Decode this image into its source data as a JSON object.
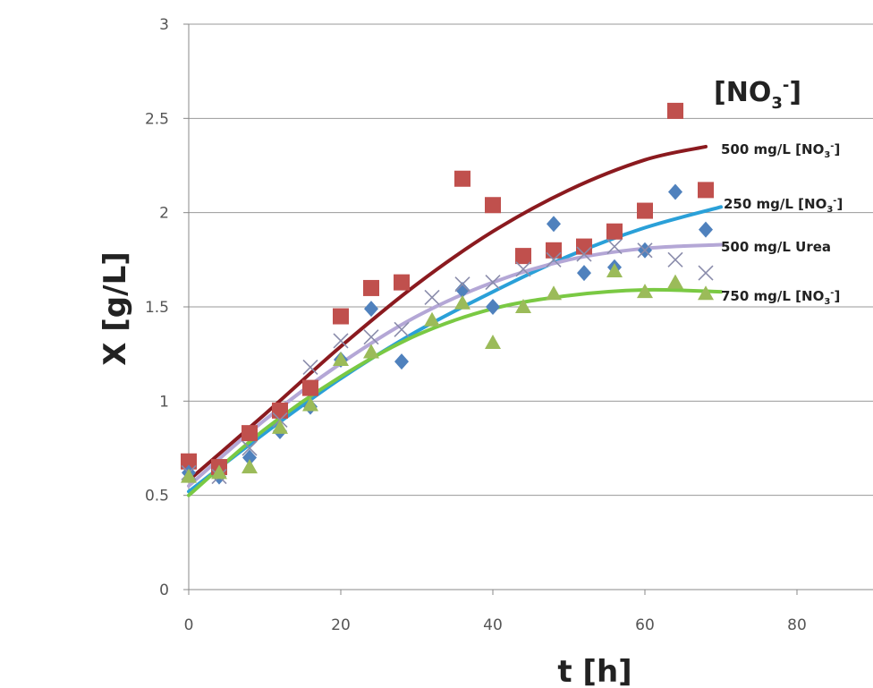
{
  "chart_data": {
    "type": "scatter",
    "title": "",
    "xlabel": "t [h]",
    "ylabel": "X [g/L]",
    "xlim": [
      0,
      90
    ],
    "ylim": [
      0,
      3
    ],
    "x_ticks": [
      "0",
      "20",
      "40",
      "60",
      "80"
    ],
    "y_ticks": [
      "0",
      "0.5",
      "1",
      "1.5",
      "2",
      "2.5",
      "3"
    ],
    "grid": "horizontal",
    "legend_placement": "right",
    "legend_title": {
      "base": "[NO",
      "sub": "3",
      "sup": "-",
      "close": "]"
    },
    "series": [
      {
        "name": "500 mg/L [NO3-]",
        "label": {
          "text": "500 mg/L [NO",
          "sub": "3",
          "sup": "-",
          "close": "]"
        },
        "marker": "square",
        "color": "#c0504d",
        "fit_color": "#8b1a1f",
        "x": [
          0,
          4,
          8,
          12,
          16,
          20,
          24,
          28,
          36,
          40,
          44,
          48,
          52,
          56,
          60,
          64,
          68
        ],
        "y": [
          0.68,
          0.65,
          0.83,
          0.95,
          1.07,
          1.45,
          1.6,
          1.63,
          2.18,
          2.04,
          1.77,
          1.8,
          1.82,
          1.9,
          2.01,
          2.54,
          2.12
        ],
        "fit": {
          "x": [
            0,
            10,
            20,
            30,
            40,
            50,
            60,
            68
          ],
          "y": [
            0.58,
            0.93,
            1.29,
            1.62,
            1.9,
            2.12,
            2.28,
            2.35
          ]
        }
      },
      {
        "name": "250 mg/L [NO3-]",
        "label": {
          "text": "250 mg/L [NO",
          "sub": "3",
          "sup": "-",
          "close": "]"
        },
        "marker": "diamond",
        "color": "#4f81bd",
        "fit_color": "#2aa0d8",
        "x": [
          0,
          4,
          8,
          12,
          16,
          20,
          24,
          28,
          36,
          40,
          48,
          52,
          56,
          60,
          64,
          68
        ],
        "y": [
          0.62,
          0.6,
          0.7,
          0.84,
          0.97,
          1.22,
          1.49,
          1.21,
          1.59,
          1.5,
          1.94,
          1.68,
          1.71,
          1.8,
          2.11,
          1.91
        ],
        "fit": {
          "x": [
            0,
            10,
            20,
            30,
            40,
            50,
            60,
            70
          ],
          "y": [
            0.52,
            0.83,
            1.12,
            1.37,
            1.58,
            1.77,
            1.92,
            2.03
          ]
        }
      },
      {
        "name": "500 mg/L  Urea",
        "label": {
          "text": "500 mg/L  Urea"
        },
        "marker": "x",
        "color": "#8a8cab",
        "fit_color": "#b4a7d6",
        "x": [
          0,
          4,
          8,
          12,
          16,
          20,
          24,
          28,
          32,
          36,
          40,
          44,
          48,
          52,
          56,
          60,
          64,
          68
        ],
        "y": [
          0.62,
          0.6,
          0.75,
          0.9,
          1.18,
          1.32,
          1.34,
          1.38,
          1.55,
          1.62,
          1.63,
          1.7,
          1.75,
          1.78,
          1.82,
          1.8,
          1.75,
          1.68
        ],
        "fit": {
          "x": [
            0,
            10,
            20,
            30,
            40,
            50,
            60,
            70
          ],
          "y": [
            0.55,
            0.9,
            1.2,
            1.45,
            1.63,
            1.75,
            1.81,
            1.83
          ]
        }
      },
      {
        "name": "750 mg/L [NO3-]",
        "label": {
          "text": "750 mg/L [NO",
          "sub": "3",
          "sup": "-",
          "close": "]"
        },
        "marker": "triangle",
        "color": "#9bbb59",
        "fit_color": "#7ac943",
        "x": [
          0,
          4,
          8,
          12,
          16,
          20,
          24,
          32,
          36,
          40,
          44,
          48,
          56,
          60,
          64,
          68
        ],
        "y": [
          0.6,
          0.62,
          0.65,
          0.86,
          0.98,
          1.22,
          1.26,
          1.43,
          1.52,
          1.31,
          1.5,
          1.57,
          1.69,
          1.58,
          1.63,
          1.57
        ],
        "fit": {
          "x": [
            0,
            10,
            20,
            30,
            40,
            50,
            60,
            70
          ],
          "y": [
            0.5,
            0.85,
            1.13,
            1.35,
            1.49,
            1.56,
            1.59,
            1.58
          ]
        }
      }
    ]
  }
}
